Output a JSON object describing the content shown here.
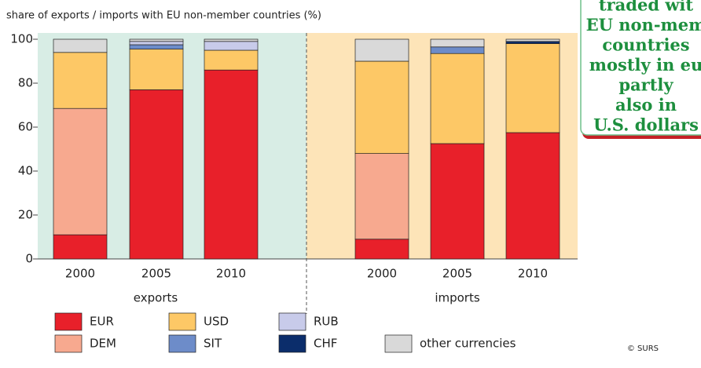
{
  "chart_data": {
    "type": "bar",
    "stacked": true,
    "title": "share of exports / imports with EU non-member countries (%)",
    "groups": [
      "exports",
      "imports"
    ],
    "categories": [
      "2000",
      "2005",
      "2010",
      "2000",
      "2005",
      "2010"
    ],
    "series": [
      {
        "name": "EUR",
        "color": "#e8202a",
        "values": [
          11,
          77,
          86,
          9,
          52.5,
          57.5
        ]
      },
      {
        "name": "DEM",
        "color": "#f7a98f",
        "values": [
          57.5,
          0,
          0,
          39,
          0,
          0
        ]
      },
      {
        "name": "USD",
        "color": "#fdc866",
        "values": [
          25.5,
          18.5,
          9,
          42,
          41,
          40.5
        ]
      },
      {
        "name": "SIT",
        "color": "#6d8cc9",
        "values": [
          0,
          2,
          0,
          0,
          3,
          0
        ]
      },
      {
        "name": "RUB",
        "color": "#c8cbea",
        "values": [
          0,
          1.5,
          4,
          0,
          0,
          0
        ]
      },
      {
        "name": "CHF",
        "color": "#0b2d6b",
        "values": [
          0,
          0,
          0,
          0,
          0,
          1
        ]
      },
      {
        "name": "other currencies",
        "color": "#d9d9d9",
        "values": [
          6,
          1,
          1,
          10,
          3.5,
          1
        ]
      }
    ],
    "ylim": [
      0,
      100
    ],
    "yticks": [
      0,
      20,
      40,
      60,
      80,
      100
    ],
    "group_colors": [
      "#d8ede5",
      "#fde4b8"
    ],
    "credit": "© SURS",
    "callout": [
      "traded wit",
      "EU non-mem",
      "countries",
      "mostly in eu",
      "partly",
      "also in",
      "U.S. dollars"
    ]
  }
}
